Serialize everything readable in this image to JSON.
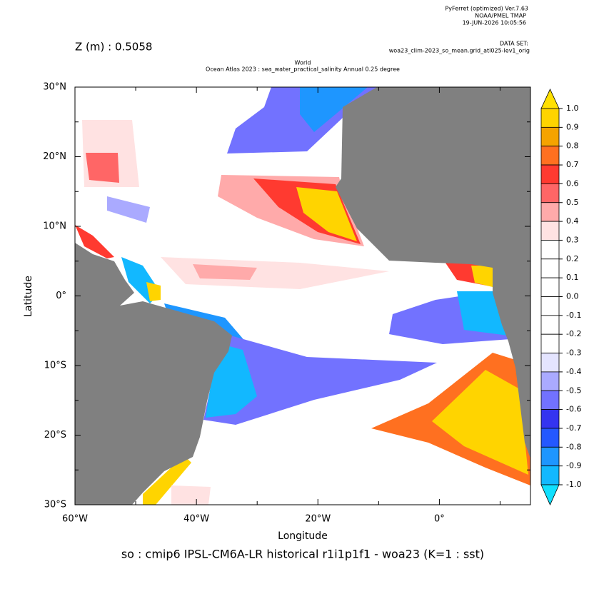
{
  "header": {
    "software": "PyFerret (optimized) Ver.7.63",
    "org": "NOAA/PMEL TMAP",
    "date": "19-JUN-2026 10:05:56",
    "dataset_label": "DATA SET:",
    "dataset": "woa23_clim-2023_so_mean.grid_atl025-lev1_orig",
    "depth": "Z (m) : 0.5058",
    "title_line1": "World",
    "title_line2": "Ocean Atlas 2023 : sea_water_practical_salinity Annual  0.25 degree"
  },
  "chart_data": {
    "type": "map",
    "caption": "so : cmip6 IPSL-CM6A-LR historical r1i1p1f1 - woa23  (K=1 : sst)",
    "x_label": "Longitude",
    "y_label": "Latitude",
    "xlim": [
      -60,
      15
    ],
    "ylim": [
      -30,
      30
    ],
    "xticks": [
      {
        "value": -60,
        "label": "60°W"
      },
      {
        "value": -40,
        "label": "40°W"
      },
      {
        "value": -20,
        "label": "20°W"
      },
      {
        "value": 0,
        "label": "0°"
      }
    ],
    "xminorticks": [
      -50,
      -30,
      -10,
      10
    ],
    "yticks": [
      {
        "value": 30,
        "label": "30°N"
      },
      {
        "value": 20,
        "label": "20°N"
      },
      {
        "value": 10,
        "label": "10°N"
      },
      {
        "value": 0,
        "label": "0°"
      },
      {
        "value": -10,
        "label": "10°S"
      },
      {
        "value": -20,
        "label": "20°S"
      },
      {
        "value": -30,
        "label": "30°S"
      }
    ],
    "yminorticks": [
      25,
      15,
      5,
      -5,
      -15,
      -25
    ],
    "land_color": "#808080",
    "colorbar": {
      "levels": [
        {
          "value": 1,
          "label": "1.0"
        },
        0.9,
        0.8,
        0.7,
        0.6,
        0.5,
        0.4,
        0.3,
        0.2,
        0.1,
        {
          "value": 0,
          "label": "0.0"
        },
        -0.1,
        -0.2,
        -0.3,
        -0.4,
        -0.5,
        -0.6,
        -0.7,
        -0.8,
        -0.9,
        {
          "value": -1,
          "label": "-1.0"
        }
      ],
      "colors": [
        "#ffd400",
        "#f5a300",
        "#ff7020",
        "#ff3a30",
        "#ff6666",
        "#ffaaaa",
        "#ffe2e2",
        "#ffffff",
        "#ffffff",
        "#ffffff",
        "#ffffff",
        "#ffffff",
        "#ffffff",
        "#e4e4ff",
        "#aaaaff",
        "#7272ff",
        "#3434f0",
        "#2458ff",
        "#1e96ff",
        "#12b8ff"
      ],
      "over_color": "#ffe000",
      "under_color": "#10e0ff"
    }
  }
}
